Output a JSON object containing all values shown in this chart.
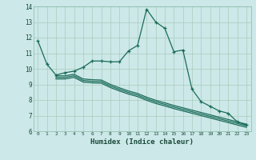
{
  "xlabel": "Humidex (Indice chaleur)",
  "bg_color": "#cce8e8",
  "grid_color": "#aaccbb",
  "line_color": "#1a6b5a",
  "xlim": [
    -0.5,
    23.5
  ],
  "ylim": [
    6,
    14
  ],
  "yticks": [
    6,
    7,
    8,
    9,
    10,
    11,
    12,
    13,
    14
  ],
  "xticks": [
    0,
    1,
    2,
    3,
    4,
    5,
    6,
    7,
    8,
    9,
    10,
    11,
    12,
    13,
    14,
    15,
    16,
    17,
    18,
    19,
    20,
    21,
    22,
    23
  ],
  "series1_x": [
    0,
    1,
    2,
    3,
    4,
    5,
    6,
    7,
    8,
    9,
    10,
    11,
    12,
    13,
    14,
    15,
    16,
    17,
    18,
    19,
    20,
    21,
    22,
    23
  ],
  "series1_y": [
    11.8,
    10.3,
    9.6,
    9.75,
    9.85,
    10.1,
    10.5,
    10.5,
    10.45,
    10.45,
    11.15,
    11.5,
    13.82,
    13.0,
    12.6,
    11.1,
    11.2,
    8.7,
    7.9,
    7.6,
    7.3,
    7.15,
    6.6,
    6.4
  ],
  "series2_x": [
    2,
    3,
    4,
    5,
    6,
    7,
    8,
    9,
    10,
    11,
    12,
    13,
    14,
    15,
    16,
    17,
    18,
    19,
    20,
    21,
    22,
    23
  ],
  "series2_y": [
    9.55,
    9.55,
    9.65,
    9.35,
    9.3,
    9.28,
    9.0,
    8.78,
    8.58,
    8.42,
    8.18,
    7.98,
    7.82,
    7.65,
    7.5,
    7.35,
    7.2,
    7.05,
    6.9,
    6.75,
    6.6,
    6.45
  ],
  "series3_x": [
    2,
    3,
    4,
    5,
    6,
    7,
    8,
    9,
    10,
    11,
    12,
    13,
    14,
    15,
    16,
    17,
    18,
    19,
    20,
    21,
    22,
    23
  ],
  "series3_y": [
    9.45,
    9.45,
    9.55,
    9.25,
    9.2,
    9.18,
    8.9,
    8.68,
    8.48,
    8.32,
    8.08,
    7.88,
    7.72,
    7.55,
    7.4,
    7.25,
    7.1,
    6.95,
    6.8,
    6.65,
    6.5,
    6.35
  ],
  "series4_x": [
    2,
    3,
    4,
    5,
    6,
    7,
    8,
    9,
    10,
    11,
    12,
    13,
    14,
    15,
    16,
    17,
    18,
    19,
    20,
    21,
    22,
    23
  ],
  "series4_y": [
    9.35,
    9.35,
    9.45,
    9.15,
    9.1,
    9.08,
    8.8,
    8.58,
    8.38,
    8.22,
    7.98,
    7.78,
    7.62,
    7.45,
    7.3,
    7.15,
    7.0,
    6.85,
    6.7,
    6.55,
    6.4,
    6.25
  ]
}
